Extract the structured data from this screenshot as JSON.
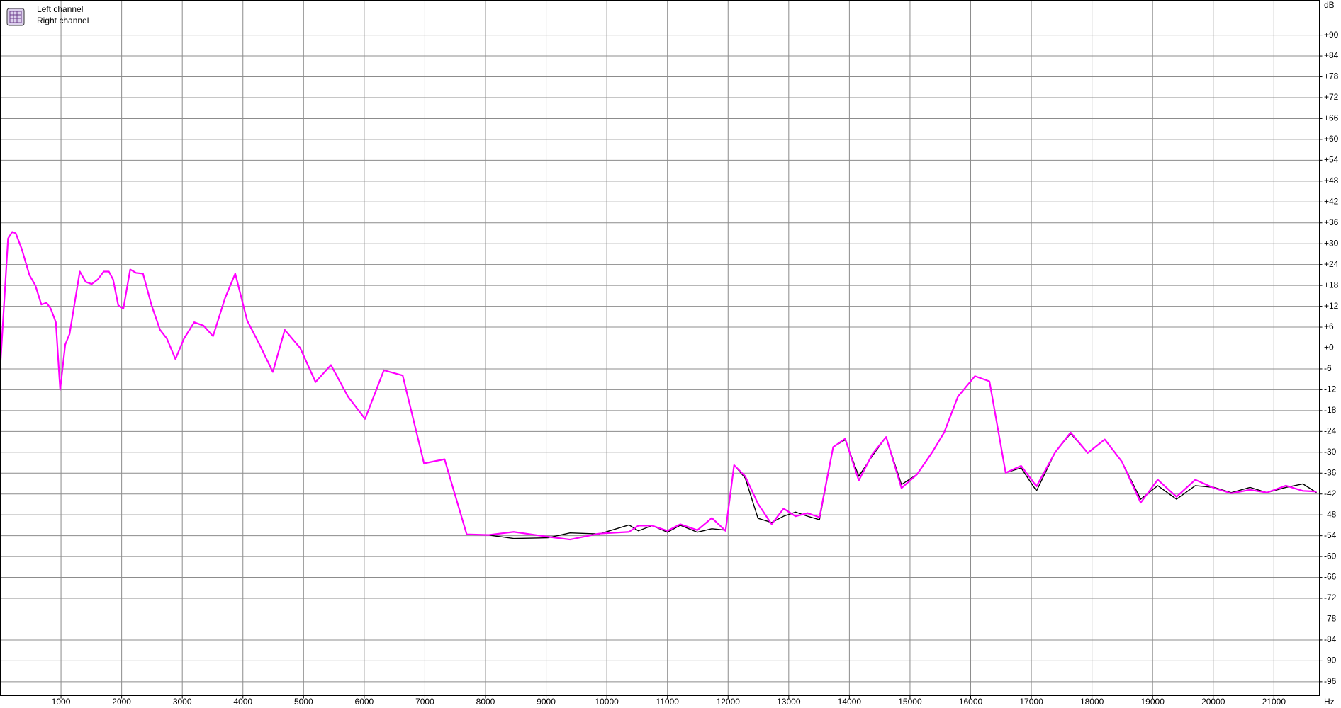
{
  "chart_data": {
    "type": "line",
    "x_label": "Hz",
    "y_label": "dB",
    "xlim": [
      0,
      21750
    ],
    "ylim": [
      -100,
      100
    ],
    "xticks": [
      1000,
      2000,
      3000,
      4000,
      5000,
      6000,
      7000,
      8000,
      9000,
      10000,
      11000,
      12000,
      13000,
      14000,
      15000,
      16000,
      17000,
      18000,
      19000,
      20000,
      21000
    ],
    "yticks": [
      {
        "value": 90,
        "label": "+90"
      },
      {
        "value": 84,
        "label": "+84"
      },
      {
        "value": 78,
        "label": "+78"
      },
      {
        "value": 72,
        "label": "+72"
      },
      {
        "value": 66,
        "label": "+66"
      },
      {
        "value": 60,
        "label": "+60"
      },
      {
        "value": 54,
        "label": "+54"
      },
      {
        "value": 48,
        "label": "+48"
      },
      {
        "value": 42,
        "label": "+42"
      },
      {
        "value": 36,
        "label": "+36"
      },
      {
        "value": 30,
        "label": "+30"
      },
      {
        "value": 24,
        "label": "+24"
      },
      {
        "value": 18,
        "label": "+18"
      },
      {
        "value": 12,
        "label": "+12"
      },
      {
        "value": 6,
        "label": "+6"
      },
      {
        "value": 0,
        "label": "+0"
      },
      -6,
      -12,
      -18,
      -24,
      -30,
      -36,
      -42,
      -48,
      -54,
      -60,
      -66,
      -72,
      -78,
      -84,
      -90,
      -96
    ],
    "grid": true,
    "legend": "top-left",
    "x": [
      0,
      127,
      197,
      254,
      352,
      479,
      577,
      676,
      761,
      831,
      915,
      986,
      1070,
      1141,
      1310,
      1408,
      1507,
      1606,
      1704,
      1789,
      1859,
      1944,
      2028,
      2141,
      2239,
      2352,
      2493,
      2634,
      2746,
      2887,
      3028,
      3197,
      3352,
      3507,
      3704,
      3873,
      4070,
      4268,
      4493,
      4690,
      4944,
      5197,
      5451,
      5733,
      6014,
      6324,
      6634,
      6986,
      7324,
      7690,
      8042,
      8465,
      9028,
      9394,
      9873,
      10366,
      10521,
      10746,
      11000,
      11211,
      11493,
      11732,
      11958,
      12099,
      12282,
      12493,
      12718,
      12915,
      13113,
      13310,
      13507,
      13733,
      13930,
      14155,
      14380,
      14606,
      14859,
      15113,
      15366,
      15563,
      15789,
      16070,
      16310,
      16577,
      16831,
      17085,
      17394,
      17648,
      17930,
      18211,
      18493,
      18803,
      19085,
      19394,
      19704,
      20014,
      20296,
      20606,
      20887,
      21197,
      21479,
      21704
    ],
    "series": [
      {
        "name": "Left channel",
        "color": "#000000",
        "values": [
          -5,
          31.5,
          33.4,
          33,
          28.5,
          21,
          18,
          12.5,
          13,
          11.3,
          7.4,
          -12,
          1,
          4,
          22,
          19,
          18.4,
          19.7,
          22,
          22,
          19.7,
          12.3,
          11.3,
          22.6,
          21.6,
          21.4,
          12.3,
          5.2,
          2.7,
          -3.2,
          2.7,
          7.4,
          6.4,
          3.4,
          14.3,
          21.4,
          7.9,
          1.2,
          -6.9,
          5.2,
          0,
          -9.8,
          -4.9,
          -14,
          -20.4,
          -6.4,
          -7.9,
          -33.2,
          -32,
          -53.6,
          -53.8,
          -54.8,
          -54.6,
          -53.2,
          -53.5,
          -50.9,
          -52.6,
          -51.1,
          -53,
          -51,
          -53,
          -52,
          -52.4,
          -33.7,
          -37.4,
          -49,
          -50.2,
          -48.4,
          -47.2,
          -48.4,
          -49.4,
          -28.5,
          -26.4,
          -36.9,
          -31,
          -25.6,
          -39.3,
          -36.4,
          -30,
          -24.3,
          -14,
          -8.1,
          -9.6,
          -35.9,
          -34.5,
          -41.1,
          -30,
          -24.6,
          -30.2,
          -26.3,
          -32.7,
          -43.5,
          -39.6,
          -43.5,
          -39.6,
          -40.1,
          -41.6,
          -40.1,
          -41.6,
          -40.1,
          -39.1,
          -41.6
        ]
      },
      {
        "name": "Right channel",
        "color": "#ff00ff",
        "values": [
          -5,
          31.5,
          33.4,
          33,
          28.5,
          21,
          18,
          12.5,
          13,
          11.3,
          7.4,
          -12,
          1,
          4,
          22,
          19,
          18.4,
          19.7,
          22,
          22,
          19.7,
          12.3,
          11.3,
          22.6,
          21.6,
          21.4,
          12.3,
          5.2,
          2.7,
          -3.2,
          2.7,
          7.4,
          6.4,
          3.4,
          14.3,
          21.4,
          7.9,
          1.2,
          -6.9,
          5.2,
          0,
          -9.8,
          -4.9,
          -14,
          -20.4,
          -6.4,
          -7.9,
          -33.2,
          -32,
          -53.6,
          -53.8,
          -52.9,
          -54.3,
          -55.1,
          -53.4,
          -52.9,
          -51.1,
          -51.1,
          -52.6,
          -50.7,
          -52.4,
          -48.9,
          -52.6,
          -33.7,
          -36.9,
          -44.8,
          -50.7,
          -46.2,
          -48.4,
          -47.5,
          -48.7,
          -28.5,
          -26.1,
          -38.1,
          -30.5,
          -25.6,
          -40.3,
          -36.4,
          -30,
          -24.3,
          -14,
          -8.1,
          -9.6,
          -35.9,
          -33.9,
          -39.8,
          -30,
          -24.3,
          -30.2,
          -26.3,
          -32.7,
          -44.5,
          -37.9,
          -42.8,
          -37.9,
          -40.3,
          -41.8,
          -40.8,
          -41.6,
          -39.6,
          -41.1,
          -41.3
        ]
      }
    ]
  }
}
